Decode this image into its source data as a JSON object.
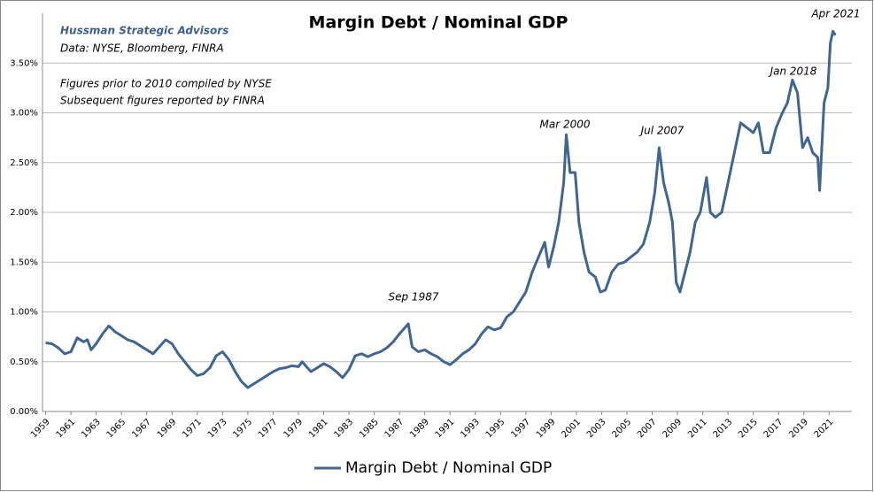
{
  "chart_data": {
    "type": "line",
    "title": "Margin Debt / Nominal GDP",
    "notes": [
      "Hussman Strategic Advisors",
      "Data: NYSE, Bloomberg, FINRA",
      "Figures prior to 2010 compiled by NYSE",
      "Subsequent figures reported by FINRA"
    ],
    "annotations": [
      "Sep 1987",
      "Mar 2000",
      "Jul 2007",
      "Jan 2018",
      "Apr 2021"
    ],
    "x": [
      1959.0,
      1959.5,
      1960.0,
      1960.5,
      1961.0,
      1961.5,
      1962.0,
      1962.3,
      1962.6,
      1963.0,
      1963.5,
      1964.0,
      1964.5,
      1965.0,
      1965.5,
      1966.0,
      1966.5,
      1967.0,
      1967.5,
      1968.0,
      1968.5,
      1969.0,
      1969.5,
      1970.0,
      1970.5,
      1971.0,
      1971.5,
      1972.0,
      1972.5,
      1973.0,
      1973.5,
      1974.0,
      1974.5,
      1975.0,
      1975.5,
      1976.0,
      1976.5,
      1977.0,
      1977.5,
      1978.0,
      1978.5,
      1979.0,
      1979.3,
      1979.7,
      1980.0,
      1980.5,
      1981.0,
      1981.5,
      1982.0,
      1982.5,
      1983.0,
      1983.5,
      1984.0,
      1984.5,
      1985.0,
      1985.5,
      1986.0,
      1986.5,
      1987.0,
      1987.7,
      1988.0,
      1988.5,
      1989.0,
      1989.5,
      1990.0,
      1990.5,
      1991.0,
      1991.5,
      1992.0,
      1992.5,
      1993.0,
      1993.5,
      1994.0,
      1994.5,
      1995.0,
      1995.5,
      1996.0,
      1996.5,
      1997.0,
      1997.5,
      1998.0,
      1998.5,
      1998.8,
      1999.2,
      1999.6,
      2000.0,
      2000.2,
      2000.5,
      2000.9,
      2001.2,
      2001.6,
      2002.0,
      2002.5,
      2002.9,
      2003.3,
      2003.8,
      2004.3,
      2004.8,
      2005.3,
      2005.8,
      2006.3,
      2006.8,
      2007.2,
      2007.55,
      2007.9,
      2008.3,
      2008.6,
      2008.9,
      2009.2,
      2009.6,
      2010.0,
      2010.4,
      2010.8,
      2011.3,
      2011.6,
      2012.0,
      2012.5,
      2013.0,
      2013.5,
      2014.0,
      2014.5,
      2015.0,
      2015.4,
      2015.8,
      2016.3,
      2016.8,
      2017.3,
      2017.7,
      2018.1,
      2018.5,
      2018.9,
      2019.3,
      2019.7,
      2020.1,
      2020.25,
      2020.6,
      2020.9,
      2021.1,
      2021.3,
      2021.5
    ],
    "series": [
      {
        "name": "Margin Debt / Nominal GDP",
        "color": "#3f6593",
        "values": [
          0.69,
          0.68,
          0.64,
          0.58,
          0.6,
          0.74,
          0.7,
          0.72,
          0.62,
          0.68,
          0.78,
          0.86,
          0.8,
          0.76,
          0.72,
          0.7,
          0.66,
          0.62,
          0.58,
          0.65,
          0.72,
          0.68,
          0.58,
          0.5,
          0.42,
          0.36,
          0.38,
          0.44,
          0.56,
          0.6,
          0.52,
          0.4,
          0.3,
          0.24,
          0.28,
          0.32,
          0.36,
          0.4,
          0.43,
          0.44,
          0.46,
          0.45,
          0.5,
          0.44,
          0.4,
          0.44,
          0.48,
          0.45,
          0.4,
          0.34,
          0.42,
          0.56,
          0.58,
          0.55,
          0.58,
          0.6,
          0.64,
          0.7,
          0.78,
          0.88,
          0.65,
          0.6,
          0.62,
          0.58,
          0.55,
          0.5,
          0.47,
          0.52,
          0.58,
          0.62,
          0.68,
          0.78,
          0.85,
          0.82,
          0.84,
          0.95,
          1.0,
          1.1,
          1.2,
          1.4,
          1.55,
          1.7,
          1.45,
          1.65,
          1.9,
          2.3,
          2.78,
          2.4,
          2.4,
          1.9,
          1.6,
          1.4,
          1.35,
          1.2,
          1.22,
          1.4,
          1.48,
          1.5,
          1.55,
          1.6,
          1.68,
          1.9,
          2.2,
          2.65,
          2.3,
          2.1,
          1.9,
          1.3,
          1.2,
          1.4,
          1.6,
          1.9,
          2.0,
          2.35,
          2.0,
          1.95,
          2.0,
          2.3,
          2.6,
          2.9,
          2.85,
          2.8,
          2.9,
          2.6,
          2.6,
          2.85,
          3.0,
          3.1,
          3.33,
          3.2,
          2.65,
          2.75,
          2.6,
          2.55,
          2.22,
          3.1,
          3.25,
          3.7,
          3.82,
          3.78
        ]
      }
    ],
    "xlim": [
      1958.75,
      2022.8
    ],
    "xticks": [
      1959,
      1961,
      1963,
      1965,
      1967,
      1969,
      1971,
      1973,
      1975,
      1977,
      1979,
      1981,
      1983,
      1985,
      1987,
      1989,
      1991,
      1993,
      1995,
      1997,
      1999,
      2001,
      2003,
      2005,
      2007,
      2009,
      2011,
      2013,
      2015,
      2017,
      2019,
      2021
    ],
    "ylim": [
      0,
      4.0
    ],
    "yticks": [
      {
        "value": 0,
        "label": "0.00%"
      },
      {
        "value": 0.5,
        "label": "0.50%"
      },
      {
        "value": 1.0,
        "label": "1.00%"
      },
      {
        "value": 1.5,
        "label": "1.50%"
      },
      {
        "value": 2.0,
        "label": "2.00%"
      },
      {
        "value": 2.5,
        "label": "2.50%"
      },
      {
        "value": 3.0,
        "label": "3.00%"
      },
      {
        "value": 3.5,
        "label": "3.50%"
      }
    ],
    "grid": true,
    "legend": "bottom"
  }
}
